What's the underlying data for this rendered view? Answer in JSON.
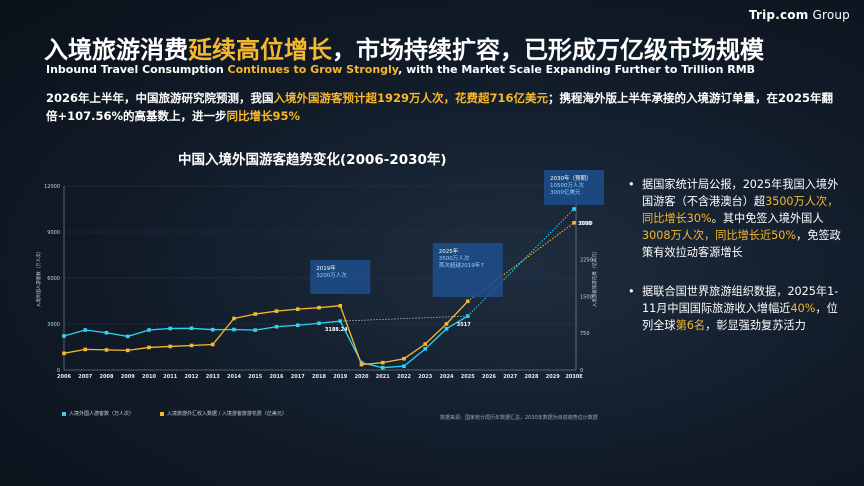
{
  "brand": {
    "name": "Trip.com",
    "group": " Group"
  },
  "header": {
    "title_pre": "入境旅游消费",
    "title_hl": "延续高位增长",
    "title_post": "，市场持续扩容，已形成万亿级市场规模",
    "subtitle_pre": "Inbound Travel Consumption ",
    "subtitle_hl": "Continues to Grow Strongly",
    "subtitle_post": ", with the Market Scale Expanding Further to Trillion RMB"
  },
  "intro": {
    "p1": "2026年上半年，中国旅游研究院预测，我国",
    "hl1": "入境外国游客预计超1929万人次，花费超716亿美元",
    "p2": "；携程海外版上半年承接的入境游订单量，在2025年翻倍+107.56%的高基数上，进一步",
    "hl2": "同比增长95%"
  },
  "bullets": [
    {
      "dot": "•",
      "t1": "据国家统计局公报，2025年我国入境外国游客（不含港澳台）超",
      "h1": "3500万人次，同比增长30%",
      "t2": "。其中免签入境外国人",
      "h2": "3008万人次，同比增长近50%",
      "t3": "，免签政策有效拉动客源增长"
    },
    {
      "dot": "•",
      "t1": "据联合国世界旅游组织数据，2025年1-11月中国国际旅游收入增幅近",
      "h1": "40%",
      "t2": "，位列全球",
      "h2": "第6名",
      "t3": "，彰显强劲复苏活力"
    }
  ],
  "legend": {
    "series1": "入境外国人游客数（万人次）",
    "series2": "入境旅游外汇收入数据 / 入境游客旅游花费（亿美元）"
  },
  "source": "数据来源：国家统计局历年数据汇总，2030年数据为目前趋势估计数据",
  "colors": {
    "cyan": "#2ed3f0",
    "orange": "#f5b82e",
    "callout": "#1f4f8c",
    "highlight": "#f5b82e"
  },
  "chart_data": {
    "type": "line",
    "title": "中国入境外国游客趋势变化(2006-2030年)",
    "x": [
      "2006",
      "2007",
      "2008",
      "2009",
      "2010",
      "2011",
      "2012",
      "2013",
      "2014",
      "2015",
      "2016",
      "2017",
      "2018",
      "2019",
      "2020",
      "2021",
      "2022",
      "2023",
      "2024",
      "2025",
      "2026",
      "2027",
      "2028",
      "2029",
      "2030E"
    ],
    "ylabel_left": "入境外国人游客数（万人次）",
    "ylabel_right": "入境游客旅游花费（亿美元）",
    "ylim_left": [
      0,
      12000
    ],
    "ylim_right": [
      0,
      3750
    ],
    "left_ticks": [
      "0",
      "3000",
      "6000",
      "9000",
      "12000"
    ],
    "right_ticks": [
      "0",
      "750",
      "1500",
      "2250",
      "3000"
    ],
    "series": [
      {
        "name": "入境外国人游客数（万人次）",
        "axis": "left",
        "values": [
          2220,
          2610,
          2430,
          2190,
          2610,
          2710,
          2720,
          2630,
          2640,
          2600,
          2820,
          2920,
          3050,
          3188,
          480,
          150,
          250,
          1380,
          2690,
          3517,
          null,
          null,
          null,
          null,
          null
        ],
        "projection": {
          "from_index": 19,
          "to_index": 24,
          "to_value": 10500
        }
      },
      {
        "name": "入境游客旅游花费（亿美元）",
        "axis": "right",
        "values": [
          340,
          420,
          410,
          400,
          460,
          480,
          500,
          520,
          1050,
          1140,
          1200,
          1240,
          1270,
          1310,
          110,
          150,
          230,
          530,
          940,
          1400,
          null,
          null,
          null,
          null,
          null
        ],
        "projection": {
          "from_index": 19,
          "to_index": 24,
          "to_value": 3000
        }
      }
    ],
    "point_labels": [
      {
        "index": 13,
        "series": 0,
        "text": "3188.24"
      },
      {
        "index": 19,
        "series": 0,
        "text": "3517"
      },
      {
        "index": 24,
        "series": 1,
        "text": "3000"
      }
    ],
    "comparison_line": {
      "from_index": 13,
      "to_index": 19,
      "series": 0
    },
    "callouts": [
      {
        "year_index": 13,
        "line1": "2019年",
        "line2": "3200万人次"
      },
      {
        "year_index": 19,
        "line1": "2025年",
        "line2": "3500万人次",
        "line3": "首次超越2019年↑"
      },
      {
        "year_index": 24,
        "line1": "2030年（预期）",
        "line2": "10500万人次",
        "line3": "3000亿美元"
      }
    ]
  }
}
